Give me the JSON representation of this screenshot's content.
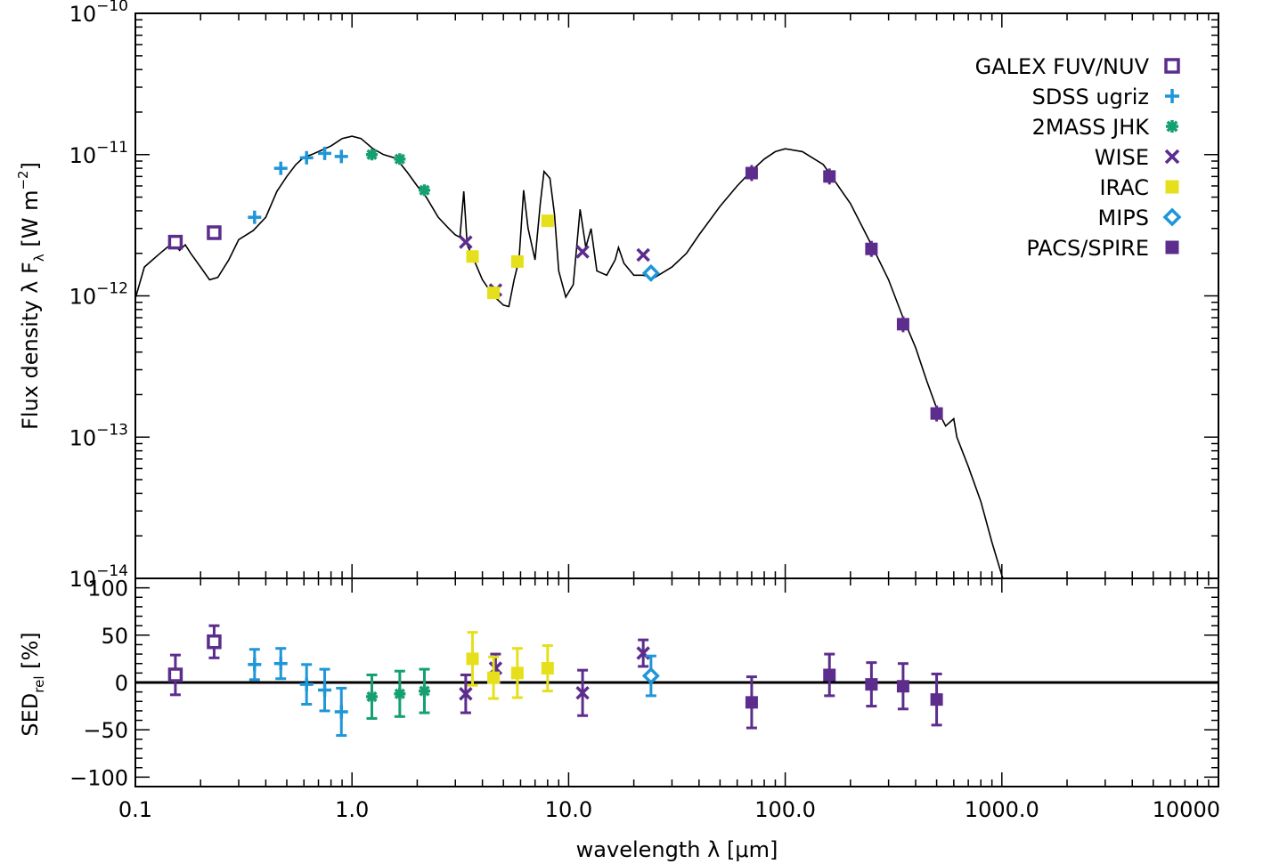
{
  "chart_data": [
    {
      "type": "scatter",
      "panel": "top",
      "ylabel": "Flux density λ F_λ [W m^-2]",
      "ylabel_parts": {
        "main": "Flux density λ F",
        "sub": "λ",
        "unit_open": " [W m",
        "sup": "−2",
        "unit_close": "]"
      },
      "xscale": "log",
      "yscale": "log",
      "xlim": [
        0.1,
        10000
      ],
      "ylim": [
        1e-14,
        1e-10
      ],
      "y_ticks": [
        {
          "value": 1e-14,
          "base": "10",
          "exp": "−14"
        },
        {
          "value": 1e-13,
          "base": "10",
          "exp": "−13"
        },
        {
          "value": 1e-12,
          "base": "10",
          "exp": "−12"
        },
        {
          "value": 1e-11,
          "base": "10",
          "exp": "−11"
        },
        {
          "value": 1e-10,
          "base": "10",
          "exp": "−10"
        }
      ],
      "legend_position": "top-right",
      "model_curve": [
        [
          0.1,
          9.6e-13
        ],
        [
          0.105,
          1.25e-12
        ],
        [
          0.11,
          1.6e-12
        ],
        [
          0.12,
          1.8e-12
        ],
        [
          0.13,
          2e-12
        ],
        [
          0.14,
          2.2e-12
        ],
        [
          0.15,
          2.35e-12
        ],
        [
          0.16,
          2.1e-12
        ],
        [
          0.17,
          2.3e-12
        ],
        [
          0.18,
          2e-12
        ],
        [
          0.2,
          1.6e-12
        ],
        [
          0.22,
          1.3e-12
        ],
        [
          0.24,
          1.35e-12
        ],
        [
          0.27,
          1.8e-12
        ],
        [
          0.3,
          2.5e-12
        ],
        [
          0.35,
          2.9e-12
        ],
        [
          0.4,
          3.6e-12
        ],
        [
          0.45,
          5.5e-12
        ],
        [
          0.5,
          7e-12
        ],
        [
          0.55,
          8.5e-12
        ],
        [
          0.6,
          9.6e-12
        ],
        [
          0.65,
          1e-11
        ],
        [
          0.7,
          1.05e-11
        ],
        [
          0.8,
          1.15e-11
        ],
        [
          0.9,
          1.3e-11
        ],
        [
          1.0,
          1.35e-11
        ],
        [
          1.1,
          1.3e-11
        ],
        [
          1.25,
          1.1e-11
        ],
        [
          1.4,
          1e-11
        ],
        [
          1.6,
          9.4e-12
        ],
        [
          1.8,
          7.5e-12
        ],
        [
          2.0,
          6e-12
        ],
        [
          2.2,
          5e-12
        ],
        [
          2.5,
          3.6e-12
        ],
        [
          2.8,
          3e-12
        ],
        [
          3.0,
          2.7e-12
        ],
        [
          3.15,
          2.6e-12
        ],
        [
          3.28,
          5.5e-12
        ],
        [
          3.4,
          2.3e-12
        ],
        [
          3.6,
          1.9e-12
        ],
        [
          4.0,
          1.3e-12
        ],
        [
          4.5,
          1e-12
        ],
        [
          5.0,
          8.6e-13
        ],
        [
          5.3,
          8.4e-13
        ],
        [
          5.6,
          1.3e-12
        ],
        [
          5.9,
          1.8e-12
        ],
        [
          6.2,
          5.6e-12
        ],
        [
          6.5,
          3e-12
        ],
        [
          7.0,
          1.8e-12
        ],
        [
          7.4,
          4.5e-12
        ],
        [
          7.7,
          7.6e-12
        ],
        [
          8.2,
          6.8e-12
        ],
        [
          8.6,
          3.8e-12
        ],
        [
          9.0,
          1.5e-12
        ],
        [
          9.7,
          9.8e-13
        ],
        [
          10.5,
          1.2e-12
        ],
        [
          11.3,
          4.1e-12
        ],
        [
          12.0,
          2.2e-12
        ],
        [
          12.7,
          3e-12
        ],
        [
          13.5,
          1.5e-12
        ],
        [
          15,
          1.4e-12
        ],
        [
          16.4,
          1.8e-12
        ],
        [
          17,
          2.2e-12
        ],
        [
          18,
          1.7e-12
        ],
        [
          20,
          1.4e-12
        ],
        [
          22,
          1.4e-12
        ],
        [
          25,
          1.35e-12
        ],
        [
          30,
          1.6e-12
        ],
        [
          35,
          2e-12
        ],
        [
          40,
          2.7e-12
        ],
        [
          50,
          4.3e-12
        ],
        [
          60,
          6e-12
        ],
        [
          70,
          7.7e-12
        ],
        [
          80,
          9.3e-12
        ],
        [
          90,
          1.05e-11
        ],
        [
          100,
          1.1e-11
        ],
        [
          120,
          1.05e-11
        ],
        [
          150,
          8.5e-12
        ],
        [
          200,
          4.5e-12
        ],
        [
          250,
          2.3e-12
        ],
        [
          300,
          1.3e-12
        ],
        [
          350,
          7e-13
        ],
        [
          400,
          4.3e-13
        ],
        [
          450,
          2.5e-13
        ],
        [
          500,
          1.6e-13
        ],
        [
          550,
          1.2e-13
        ],
        [
          600,
          1.35e-13
        ],
        [
          620,
          1e-13
        ],
        [
          700,
          6.2e-14
        ],
        [
          800,
          3.5e-14
        ],
        [
          900,
          1.8e-14
        ],
        [
          1000,
          1.05e-14
        ],
        [
          1010,
          1e-14
        ]
      ],
      "series": [
        {
          "name": "GALEX FUV/NUV",
          "marker": "open-square",
          "color": "#5c2d8c",
          "x": [
            0.153,
            0.231
          ],
          "y": [
            2.4e-12,
            2.8e-12
          ]
        },
        {
          "name": "SDSS ugriz",
          "marker": "plus",
          "color": "#1e96d8",
          "x": [
            0.355,
            0.469,
            0.617,
            0.748,
            0.893
          ],
          "y": [
            3.6e-12,
            8e-12,
            9.5e-12,
            1.02e-11,
            9.7e-12
          ]
        },
        {
          "name": "2MASS JHK",
          "marker": "asterisk",
          "color": "#16a071",
          "x": [
            1.235,
            1.662,
            2.159
          ],
          "y": [
            1e-11,
            9.3e-12,
            5.6e-12
          ]
        },
        {
          "name": "WISE",
          "marker": "x",
          "color": "#5c2d8c",
          "x": [
            3.35,
            4.6,
            11.6,
            22.1
          ],
          "y": [
            2.4e-12,
            1.1e-12,
            2.05e-12,
            1.95e-12
          ]
        },
        {
          "name": "IRAC",
          "marker": "filled-square",
          "color": "#e5e01b",
          "x": [
            3.6,
            4.5,
            5.8,
            8.0
          ],
          "y": [
            1.9e-12,
            1.05e-12,
            1.75e-12,
            3.4e-12
          ]
        },
        {
          "name": "MIPS",
          "marker": "open-diamond",
          "color": "#1e96d8",
          "x": [
            24
          ],
          "y": [
            1.45e-12
          ]
        },
        {
          "name": "PACS/SPIRE",
          "marker": "filled-square",
          "color": "#5c2d8c",
          "x": [
            70,
            160,
            250,
            350,
            500
          ],
          "y": [
            7.4e-12,
            7e-12,
            2.15e-12,
            6.3e-13,
            1.47e-13
          ]
        }
      ]
    },
    {
      "type": "scatter",
      "panel": "bottom",
      "xlabel": "wavelength λ [μm]",
      "ylabel": "SED_rel [%]",
      "ylabel_parts": {
        "main": "SED",
        "sub": "rel",
        "rest": " [%]"
      },
      "xscale": "log",
      "xlim": [
        0.1,
        10000
      ],
      "ylim": [
        -110,
        110
      ],
      "y_ticks": [
        100,
        50,
        0,
        -50,
        -100
      ],
      "y_tick_labels": [
        "100",
        "50",
        "0",
        "−50",
        "−100"
      ],
      "x_ticks": [
        0.1,
        1,
        10,
        100,
        1000,
        10000
      ],
      "x_tick_labels": [
        "0.1",
        "1.0",
        "10.0",
        "100.0",
        "1000.0",
        "10000"
      ],
      "zero_line": true,
      "series": [
        {
          "name": "GALEX FUV/NUV",
          "marker": "open-square",
          "color": "#5c2d8c",
          "x": [
            0.153,
            0.231
          ],
          "y": [
            8,
            43
          ],
          "err": [
            21,
            17
          ]
        },
        {
          "name": "SDSS ugriz",
          "marker": "plus",
          "color": "#1e96d8",
          "x": [
            0.355,
            0.469,
            0.617,
            0.748,
            0.893
          ],
          "y": [
            19,
            20,
            -2,
            -8,
            -31
          ],
          "err": [
            16,
            16,
            21,
            22,
            25
          ]
        },
        {
          "name": "2MASS JHK",
          "marker": "asterisk",
          "color": "#16a071",
          "x": [
            1.235,
            1.662,
            2.159
          ],
          "y": [
            -15,
            -12,
            -9
          ],
          "err": [
            23,
            24,
            23
          ]
        },
        {
          "name": "WISE",
          "marker": "x",
          "color": "#5c2d8c",
          "x": [
            3.35,
            4.6,
            11.6,
            22.1
          ],
          "y": [
            -12,
            15,
            -11,
            31
          ],
          "err": [
            20,
            15,
            24,
            14
          ]
        },
        {
          "name": "IRAC",
          "marker": "filled-square",
          "color": "#e5e01b",
          "x": [
            3.6,
            4.5,
            5.8,
            8.0
          ],
          "y": [
            25,
            5,
            10,
            15
          ],
          "err": [
            28,
            22,
            26,
            24
          ]
        },
        {
          "name": "MIPS",
          "marker": "open-diamond",
          "color": "#1e96d8",
          "x": [
            24
          ],
          "y": [
            7
          ],
          "err": [
            21
          ]
        },
        {
          "name": "PACS/SPIRE",
          "marker": "filled-square",
          "color": "#5c2d8c",
          "x": [
            70,
            160,
            250,
            350,
            500
          ],
          "y": [
            -21,
            8,
            -2,
            -4,
            -18
          ],
          "err": [
            27,
            22,
            23,
            24,
            27
          ]
        }
      ]
    }
  ]
}
